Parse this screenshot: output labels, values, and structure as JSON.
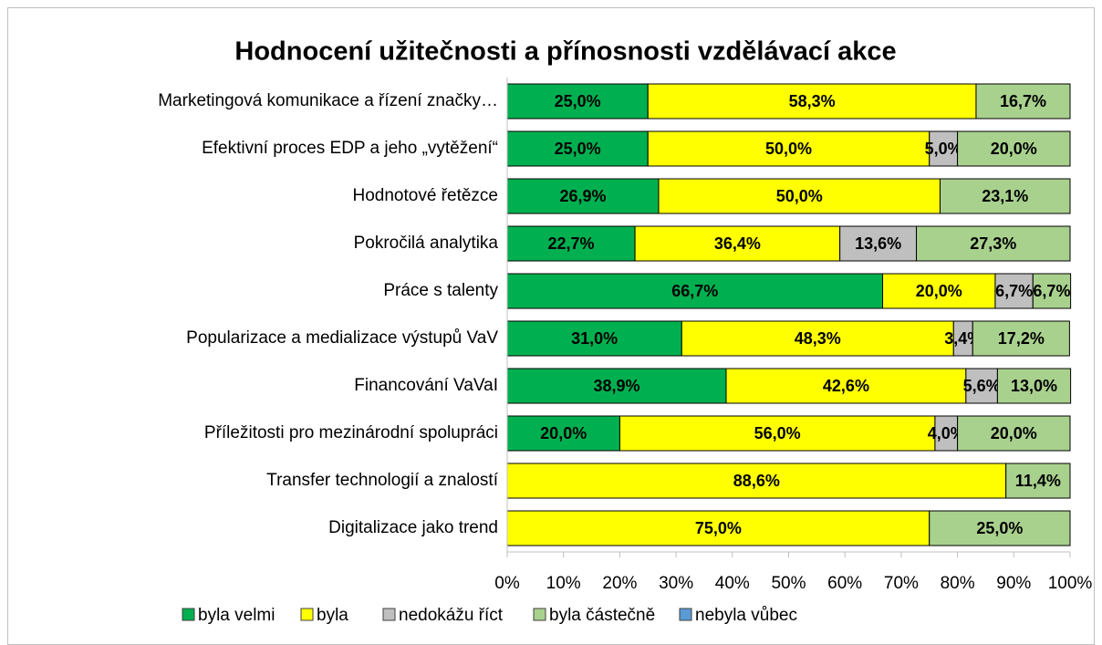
{
  "chart_data": {
    "type": "stacked_barh",
    "title": "Hodnocení užitečnosti a přínosnosti vzdělávací akce",
    "categories": [
      "Marketingová komunikace a řízení značky…",
      "Efektivní proces EDP a jeho „vytěžení“",
      "Hodnotové řetězce",
      "Pokročilá analytika",
      "Práce s talenty",
      "Popularizace a medializace výstupů VaV",
      "Financování VaVaI",
      "Příležitosti pro mezinárodní spolupráci",
      "Transfer technologií a znalostí",
      "Digitalizace jako trend"
    ],
    "series": [
      {
        "name": "byla velmi",
        "color": "#00b050",
        "values": [
          25.0,
          25.0,
          26.9,
          22.7,
          66.7,
          31.0,
          38.9,
          20.0,
          0,
          0
        ],
        "value_labels": [
          "25,0%",
          "25,0%",
          "26,9%",
          "22,7%",
          "66,7%",
          "31,0%",
          "38,9%",
          "20,0%",
          null,
          null
        ]
      },
      {
        "name": "byla",
        "color": "#ffff00",
        "values": [
          58.3,
          50.0,
          50.0,
          36.4,
          20.0,
          48.3,
          42.6,
          56.0,
          88.6,
          75.0
        ],
        "value_labels": [
          "58,3%",
          "50,0%",
          "50,0%",
          "36,4%",
          "20,0%",
          "48,3%",
          "42,6%",
          "56,0%",
          "88,6%",
          "75,0%"
        ]
      },
      {
        "name": "nedokážu říct",
        "color": "#bfbfbf",
        "values": [
          0,
          5.0,
          0,
          13.6,
          6.7,
          3.4,
          5.6,
          4.0,
          0,
          0
        ],
        "value_labels": [
          null,
          "5,0%",
          null,
          "13,6%",
          "6,7%",
          "3,4%",
          "5,6%",
          "4,0%",
          null,
          null
        ]
      },
      {
        "name": "byla částečně",
        "color": "#a9d18e",
        "values": [
          16.7,
          20.0,
          23.1,
          27.3,
          6.7,
          17.2,
          13.0,
          20.0,
          11.4,
          25.0
        ],
        "value_labels": [
          "16,7%",
          "20,0%",
          "23,1%",
          "27,3%",
          "6,7%",
          "17,2%",
          "13,0%",
          "20,0%",
          "11,4%",
          "25,0%"
        ]
      },
      {
        "name": "nebyla vůbec",
        "color": "#5b9bd5",
        "values": [
          0,
          0,
          0,
          0,
          0,
          0,
          0,
          0,
          0,
          0
        ],
        "value_labels": [
          null,
          null,
          null,
          null,
          null,
          null,
          null,
          null,
          null,
          null
        ]
      }
    ],
    "xlim": [
      0,
      100
    ],
    "xticks": [
      {
        "value": 0,
        "label": "0%"
      },
      {
        "value": 10,
        "label": "10%"
      },
      {
        "value": 20,
        "label": "20%"
      },
      {
        "value": 30,
        "label": "30%"
      },
      {
        "value": 40,
        "label": "40%"
      },
      {
        "value": 50,
        "label": "50%"
      },
      {
        "value": 60,
        "label": "60%"
      },
      {
        "value": 70,
        "label": "70%"
      },
      {
        "value": 80,
        "label": "80%"
      },
      {
        "value": 90,
        "label": "90%"
      },
      {
        "value": 100,
        "label": "100%"
      }
    ],
    "legend": "bottom"
  }
}
